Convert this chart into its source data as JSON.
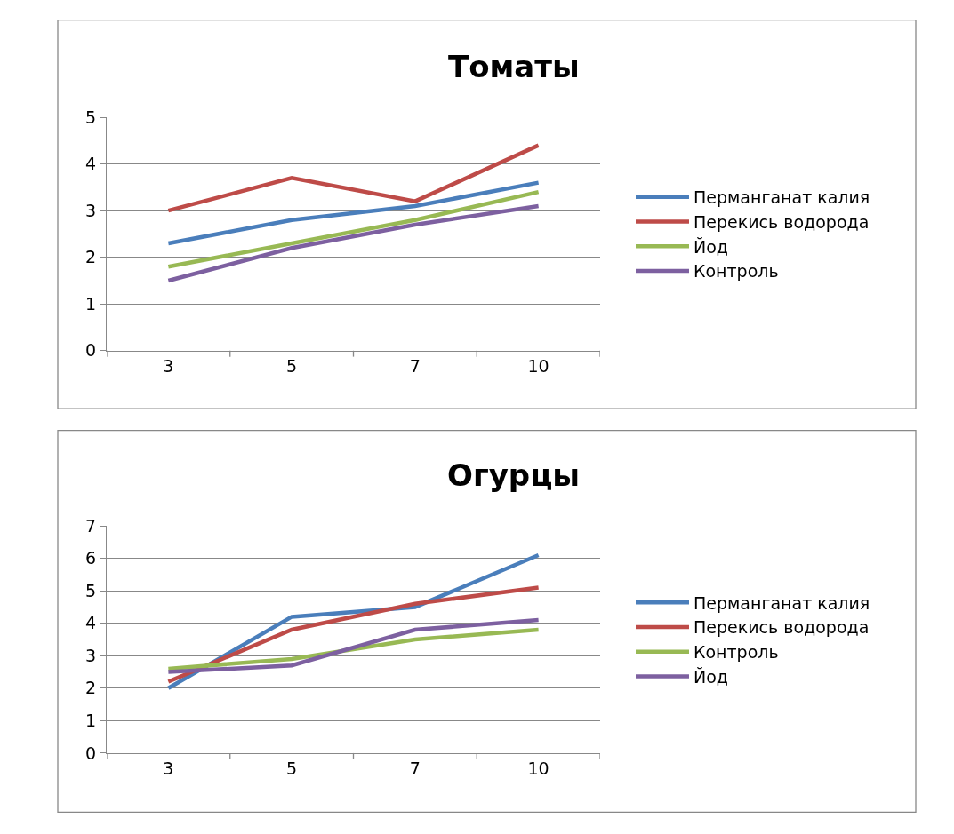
{
  "chart_data": [
    {
      "type": "line",
      "title": "Томаты",
      "categories": [
        "3",
        "5",
        "7",
        "10"
      ],
      "ylim": [
        0,
        5
      ],
      "yticks": [
        0,
        1,
        2,
        3,
        4,
        5
      ],
      "grid": "y",
      "legend": "right",
      "marker": "none",
      "line_style": "solid",
      "series": [
        {
          "name": "Перманганат калия",
          "color": "#4a7ebb",
          "values": [
            2.3,
            2.8,
            3.1,
            3.6
          ]
        },
        {
          "name": "Перекись водорода",
          "color": "#be4b48",
          "values": [
            3.0,
            3.7,
            3.2,
            4.4
          ]
        },
        {
          "name": "Йод",
          "color": "#98b954",
          "values": [
            1.8,
            2.3,
            2.8,
            3.4
          ]
        },
        {
          "name": "Контроль",
          "color": "#7d60a0",
          "values": [
            1.5,
            2.2,
            2.7,
            3.1
          ]
        }
      ]
    },
    {
      "type": "line",
      "title": "Огурцы",
      "categories": [
        "3",
        "5",
        "7",
        "10"
      ],
      "ylim": [
        0,
        7
      ],
      "yticks": [
        0,
        1,
        2,
        3,
        4,
        5,
        6,
        7
      ],
      "grid": "y",
      "legend": "right",
      "marker": "none",
      "line_style": "solid",
      "series": [
        {
          "name": "Перманганат калия",
          "color": "#4a7ebb",
          "values": [
            2.0,
            4.2,
            4.5,
            6.1
          ]
        },
        {
          "name": "Перекись водорода",
          "color": "#be4b48",
          "values": [
            2.2,
            3.8,
            4.6,
            5.1
          ]
        },
        {
          "name": "Контроль",
          "color": "#98b954",
          "values": [
            2.6,
            2.9,
            3.5,
            3.8
          ]
        },
        {
          "name": "Йод",
          "color": "#7d60a0",
          "values": [
            2.5,
            2.7,
            3.8,
            4.1
          ]
        }
      ]
    }
  ]
}
